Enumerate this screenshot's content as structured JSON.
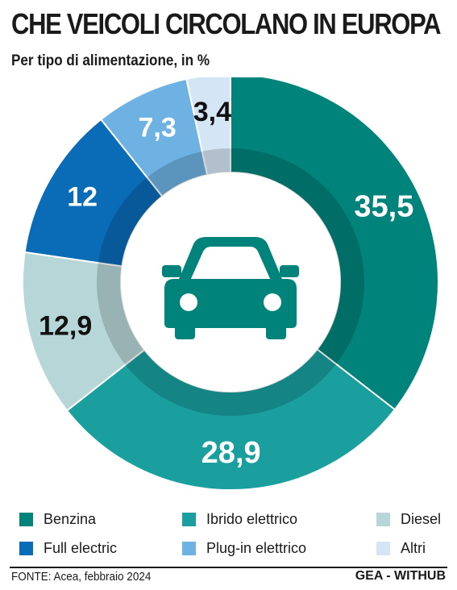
{
  "header": {
    "title": "CHE VEICOLI CIRCOLANO IN EUROPA",
    "subtitle": "Per tipo di alimentazione, in %"
  },
  "chart_data": {
    "type": "pie",
    "variant": "donut",
    "start": "top",
    "direction": "clockwise",
    "categories": [
      "Benzina",
      "Ibrido elettrico",
      "Diesel",
      "Full electric",
      "Plug-in elettrico",
      "Altri"
    ],
    "values": [
      35.5,
      28.9,
      12.9,
      12,
      7.3,
      3.4
    ],
    "value_labels": [
      "35,5",
      "28,9",
      "12,9",
      "12",
      "7,3",
      "3,4"
    ],
    "colors": [
      "#00837a",
      "#1a9e9e",
      "#b7d6d8",
      "#0a6bb7",
      "#6db2e2",
      "#d4e5f5"
    ],
    "label_colors": [
      "#ffffff",
      "#ffffff",
      "#111111",
      "#ffffff",
      "#ffffff",
      "#111111"
    ],
    "legend_position": "bottom",
    "center_icon": "car-icon"
  },
  "legend": {
    "items": [
      {
        "label": "Benzina",
        "color": "#00837a"
      },
      {
        "label": "Ibrido elettrico",
        "color": "#1a9e9e"
      },
      {
        "label": "Diesel",
        "color": "#b7d6d8"
      },
      {
        "label": "Full electric",
        "color": "#0a6bb7"
      },
      {
        "label": "Plug-in elettrico",
        "color": "#6db2e2"
      },
      {
        "label": "Altri",
        "color": "#d4e5f5"
      }
    ]
  },
  "footer": {
    "source": "FONTE: Acea, febbraio 2024",
    "brand": "GEA - WITHUB"
  },
  "colors": {
    "icon": "#00837a"
  }
}
